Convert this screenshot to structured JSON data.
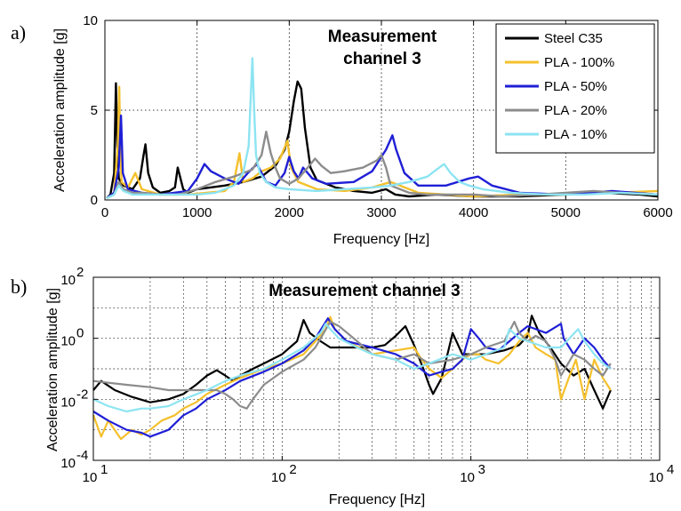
{
  "chart_data": [
    {
      "type": "line",
      "panel_label": "a)",
      "title_lines": [
        "Measurement",
        "channel 3"
      ],
      "xlabel": "Frequency [Hz]",
      "ylabel": "Acceleration amplitude [g]",
      "xlim": [
        0,
        6000
      ],
      "ylim": [
        0,
        10
      ],
      "x_ticks": [
        "0",
        "1000",
        "2000",
        "3000",
        "4000",
        "5000",
        "6000"
      ],
      "y_ticks": [
        "0",
        "5",
        "10"
      ],
      "grid": true,
      "legend_position": "top-right",
      "series": [
        {
          "name": "Steel C35",
          "color": "#000000",
          "x": [
            20,
            60,
            100,
            120,
            135,
            150,
            200,
            300,
            380,
            420,
            440,
            470,
            520,
            600,
            700,
            760,
            790,
            850,
            900,
            1000,
            1300,
            1500,
            1700,
            1850,
            1950,
            2000,
            2050,
            2090,
            2130,
            2170,
            2230,
            2300,
            2500,
            2700,
            2900,
            3050,
            3150,
            3300,
            3600,
            4000,
            4500,
            5000,
            5400,
            5800,
            6000
          ],
          "y": [
            0.1,
            0.3,
            1.5,
            6.5,
            3.0,
            1.2,
            0.8,
            0.6,
            1.2,
            2.5,
            3.1,
            1.5,
            0.7,
            0.4,
            0.5,
            0.7,
            1.8,
            0.6,
            0.4,
            0.6,
            0.8,
            1.0,
            1.3,
            1.9,
            2.8,
            3.8,
            5.5,
            6.6,
            6.2,
            4.0,
            1.8,
            1.1,
            0.7,
            0.5,
            0.4,
            0.6,
            0.3,
            0.2,
            0.3,
            0.2,
            0.2,
            0.3,
            0.4,
            0.3,
            0.2
          ]
        },
        {
          "name": "PLA - 100%",
          "color": "#f5c02c",
          "x": [
            20,
            100,
            140,
            155,
            165,
            180,
            250,
            330,
            400,
            600,
            900,
            1100,
            1300,
            1400,
            1460,
            1500,
            1600,
            1700,
            1800,
            1900,
            1980,
            2020,
            2100,
            2300,
            2600,
            2900,
            3100,
            3200,
            3400,
            3700,
            4000,
            4500,
            5000,
            5500,
            6000
          ],
          "y": [
            0.1,
            0.4,
            3.0,
            6.3,
            3.5,
            1.0,
            0.7,
            1.5,
            0.6,
            0.3,
            0.3,
            0.4,
            0.5,
            1.0,
            2.6,
            1.0,
            1.2,
            1.6,
            1.8,
            2.3,
            3.3,
            1.8,
            1.0,
            0.6,
            0.5,
            0.7,
            1.0,
            0.8,
            0.4,
            0.3,
            0.2,
            0.3,
            0.3,
            0.4,
            0.5
          ]
        },
        {
          "name": "PLA - 50%",
          "color": "#1f1fd6",
          "x": [
            20,
            100,
            150,
            175,
            195,
            250,
            400,
            600,
            900,
            1000,
            1080,
            1150,
            1300,
            1450,
            1550,
            1650,
            1750,
            1850,
            1950,
            2000,
            2050,
            2100,
            2150,
            2250,
            2400,
            2700,
            2900,
            3050,
            3120,
            3160,
            3250,
            3400,
            3700,
            3950,
            4050,
            4200,
            4500,
            5000,
            5500,
            6000
          ],
          "y": [
            0.1,
            0.4,
            1.8,
            4.7,
            1.5,
            0.6,
            0.4,
            0.3,
            0.5,
            1.2,
            2.0,
            1.6,
            1.2,
            0.9,
            1.5,
            2.0,
            1.0,
            0.8,
            1.5,
            2.4,
            1.6,
            1.2,
            1.8,
            1.2,
            0.9,
            1.0,
            1.6,
            2.8,
            3.6,
            2.8,
            1.5,
            0.8,
            0.8,
            1.2,
            1.3,
            0.8,
            0.4,
            0.3,
            0.5,
            0.3
          ]
        },
        {
          "name": "PLA - 20%",
          "color": "#8c8c8c",
          "x": [
            20,
            100,
            150,
            200,
            300,
            400,
            600,
            800,
            1000,
            1200,
            1400,
            1500,
            1600,
            1700,
            1750,
            1800,
            1850,
            1900,
            2000,
            2100,
            2200,
            2280,
            2350,
            2450,
            2600,
            2800,
            2950,
            3000,
            3050,
            3100,
            3300,
            3500,
            3800,
            4000,
            4300,
            4700,
            5000,
            5300,
            5600,
            6000
          ],
          "y": [
            0.1,
            0.3,
            1.0,
            0.6,
            0.4,
            0.4,
            0.3,
            0.3,
            0.6,
            1.0,
            1.3,
            1.5,
            1.7,
            2.5,
            3.8,
            2.6,
            1.8,
            1.2,
            0.9,
            1.2,
            1.8,
            2.3,
            1.9,
            1.5,
            1.6,
            1.8,
            2.2,
            2.5,
            1.8,
            0.8,
            0.4,
            0.3,
            0.3,
            0.3,
            0.2,
            0.3,
            0.4,
            0.5,
            0.4,
            0.3
          ]
        },
        {
          "name": "PLA - 10%",
          "color": "#8de4f2",
          "x": [
            20,
            100,
            150,
            200,
            300,
            500,
            800,
            1000,
            1200,
            1400,
            1500,
            1560,
            1600,
            1620,
            1640,
            1680,
            1750,
            1850,
            2000,
            2300,
            2600,
            2900,
            3100,
            3300,
            3500,
            3600,
            3680,
            3750,
            3850,
            3950,
            4100,
            4400,
            4800,
            5200,
            5600,
            6000
          ],
          "y": [
            0.1,
            0.3,
            0.8,
            0.5,
            0.3,
            0.3,
            0.3,
            0.3,
            0.4,
            0.8,
            1.5,
            3.0,
            7.9,
            5.0,
            2.5,
            1.5,
            1.0,
            0.7,
            0.6,
            0.5,
            0.6,
            0.7,
            0.8,
            1.0,
            1.3,
            1.7,
            2.0,
            1.5,
            1.0,
            0.8,
            0.6,
            0.4,
            0.3,
            0.3,
            0.4,
            0.3
          ]
        }
      ]
    },
    {
      "type": "line",
      "panel_label": "b)",
      "title": "Measurement channel 3",
      "xlabel": "Frequency [Hz]",
      "ylabel": "Acceleration amplitude [g]",
      "xscale": "log",
      "yscale": "log",
      "xlim": [
        10,
        10000
      ],
      "ylim": [
        0.0001,
        100
      ],
      "x_ticks": [
        {
          "base": "10",
          "exp": "1"
        },
        {
          "base": "10",
          "exp": "2"
        },
        {
          "base": "10",
          "exp": "3"
        },
        {
          "base": "10",
          "exp": "4"
        }
      ],
      "y_ticks": [
        {
          "base": "10",
          "exp": "-4"
        },
        {
          "base": "10",
          "exp": "-2"
        },
        {
          "base": "10",
          "exp": "0"
        },
        {
          "base": "10",
          "exp": "2"
        }
      ],
      "grid": true,
      "series": [
        {
          "name": "Steel C35",
          "color": "#000000",
          "x": [
            10,
            11,
            13,
            16,
            20,
            25,
            30,
            35,
            40,
            45,
            50,
            55,
            60,
            70,
            80,
            100,
            120,
            130,
            140,
            160,
            180,
            200,
            250,
            300,
            350,
            400,
            450,
            500,
            560,
            600,
            630,
            700,
            760,
            800,
            900,
            1000,
            1200,
            1500,
            1800,
            2000,
            2100,
            2300,
            2700,
            3000,
            3500,
            4000,
            4500,
            5000,
            5500
          ],
          "y": [
            0.02,
            0.04,
            0.02,
            0.012,
            0.008,
            0.01,
            0.015,
            0.03,
            0.06,
            0.09,
            0.06,
            0.04,
            0.06,
            0.1,
            0.15,
            0.3,
            0.8,
            4.0,
            1.5,
            0.8,
            0.5,
            0.5,
            0.5,
            0.5,
            0.6,
            1.2,
            2.5,
            0.6,
            0.1,
            0.03,
            0.015,
            0.05,
            0.4,
            1.5,
            0.3,
            0.3,
            0.3,
            0.4,
            0.6,
            1.2,
            5.5,
            1.5,
            0.4,
            0.15,
            0.06,
            0.1,
            0.02,
            0.005,
            0.02
          ]
        },
        {
          "name": "PLA - 100%",
          "color": "#f5c02c",
          "x": [
            10,
            11,
            12,
            14,
            16,
            18,
            20,
            23,
            27,
            30,
            35,
            40,
            50,
            60,
            80,
            100,
            130,
            150,
            170,
            180,
            190,
            220,
            300,
            400,
            500,
            550,
            600,
            700,
            800,
            900,
            1000,
            1100,
            1200,
            1400,
            1600,
            1800,
            2000,
            2200,
            2500,
            2800,
            3000,
            3300,
            3600,
            4000,
            4500,
            5000,
            5500
          ],
          "y": [
            0.003,
            0.0006,
            0.002,
            0.0005,
            0.001,
            0.0007,
            0.001,
            0.002,
            0.003,
            0.005,
            0.008,
            0.015,
            0.03,
            0.05,
            0.1,
            0.15,
            0.3,
            0.8,
            2.0,
            5.0,
            2.0,
            0.8,
            0.3,
            0.4,
            0.5,
            0.2,
            0.1,
            0.05,
            0.1,
            0.2,
            0.3,
            0.3,
            0.2,
            0.15,
            0.3,
            0.8,
            1.5,
            0.5,
            0.3,
            0.2,
            0.01,
            0.05,
            0.2,
            0.01,
            0.2,
            0.05,
            0.02
          ]
        },
        {
          "name": "PLA - 50%",
          "color": "#1f1fd6",
          "x": [
            10,
            12,
            15,
            18,
            20,
            25,
            30,
            35,
            40,
            50,
            60,
            80,
            100,
            130,
            150,
            175,
            190,
            220,
            300,
            400,
            500,
            600,
            700,
            800,
            900,
            1000,
            1100,
            1200,
            1400,
            1600,
            1800,
            2000,
            2500,
            3000,
            3100,
            3500,
            4000,
            4500,
            5000,
            5500
          ],
          "y": [
            0.004,
            0.002,
            0.001,
            0.0008,
            0.0006,
            0.001,
            0.003,
            0.005,
            0.01,
            0.02,
            0.04,
            0.08,
            0.15,
            0.4,
            1.0,
            4.5,
            2.0,
            0.8,
            0.5,
            0.3,
            0.15,
            0.06,
            0.08,
            0.1,
            0.2,
            2.0,
            1.0,
            0.5,
            0.4,
            0.8,
            1.5,
            2.5,
            1.5,
            3.0,
            1.0,
            0.3,
            1.0,
            0.5,
            0.2,
            0.1
          ]
        },
        {
          "name": "PLA - 20%",
          "color": "#8c8c8c",
          "x": [
            10,
            12,
            15,
            20,
            25,
            30,
            35,
            40,
            45,
            50,
            55,
            60,
            65,
            70,
            80,
            100,
            130,
            150,
            180,
            200,
            250,
            300,
            400,
            500,
            600,
            800,
            1000,
            1200,
            1500,
            1700,
            1800,
            2000,
            2200,
            2500,
            2800,
            3000,
            3500,
            4000,
            4500,
            5000,
            5500
          ],
          "y": [
            0.04,
            0.035,
            0.03,
            0.025,
            0.02,
            0.02,
            0.02,
            0.02,
            0.02,
            0.015,
            0.01,
            0.006,
            0.005,
            0.01,
            0.03,
            0.08,
            0.2,
            0.5,
            3.5,
            2.5,
            0.8,
            0.3,
            0.2,
            0.3,
            0.15,
            0.2,
            0.3,
            0.5,
            0.8,
            3.5,
            1.5,
            0.8,
            1.2,
            0.8,
            0.2,
            0.06,
            0.3,
            0.2,
            0.1,
            0.06,
            0.15
          ]
        },
        {
          "name": "PLA - 10%",
          "color": "#8de4f2",
          "x": [
            10,
            12,
            15,
            18,
            20,
            25,
            30,
            40,
            50,
            60,
            80,
            100,
            130,
            160,
            170,
            180,
            200,
            250,
            300,
            400,
            500,
            600,
            800,
            1000,
            1200,
            1500,
            1600,
            1800,
            2000,
            2500,
            3000,
            3700,
            4000,
            4500,
            5000,
            5500
          ],
          "y": [
            0.01,
            0.006,
            0.004,
            0.005,
            0.005,
            0.006,
            0.01,
            0.02,
            0.04,
            0.06,
            0.1,
            0.2,
            0.5,
            1.5,
            3.0,
            2.0,
            1.0,
            0.5,
            0.3,
            0.2,
            0.1,
            0.15,
            0.3,
            0.2,
            0.3,
            0.5,
            2.0,
            1.0,
            0.8,
            0.5,
            0.5,
            2.0,
            0.8,
            0.3,
            0.15,
            0.1
          ]
        }
      ]
    }
  ]
}
